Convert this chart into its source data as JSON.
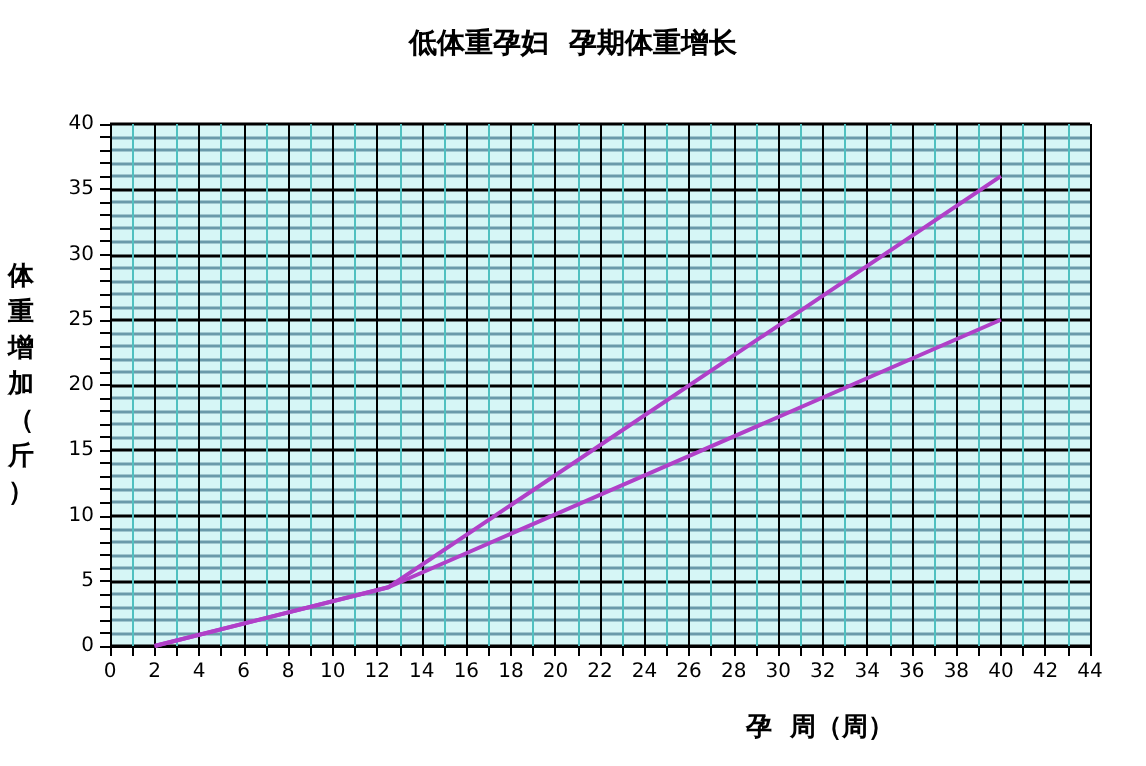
{
  "chart_data": {
    "type": "line",
    "title": "低体重孕妇  孕期体重增长",
    "xlabel": "孕  周（周）",
    "ylabel": "体重增加（斤）",
    "series": [
      {
        "x": [
          2,
          12.5,
          40
        ],
        "values": [
          0,
          4.5,
          36
        ],
        "color": "#b040c8"
      },
      {
        "x": [
          2,
          12.5,
          40
        ],
        "values": [
          0,
          4.5,
          25
        ],
        "color": "#b040c8"
      }
    ],
    "xlim": [
      0,
      44
    ],
    "xticks": [
      0,
      {
        "value": 1,
        "label": null
      },
      2,
      {
        "value": 3,
        "label": null
      },
      4,
      {
        "value": 5,
        "label": null
      },
      6,
      {
        "value": 7,
        "label": null
      },
      8,
      {
        "value": 9,
        "label": null
      },
      10,
      {
        "value": 11,
        "label": null
      },
      12,
      {
        "value": 13,
        "label": null
      },
      14,
      {
        "value": 15,
        "label": null
      },
      16,
      {
        "value": 17,
        "label": null
      },
      18,
      {
        "value": 19,
        "label": null
      },
      20,
      {
        "value": 21,
        "label": null
      },
      22,
      {
        "value": 23,
        "label": null
      },
      24,
      {
        "value": 25,
        "label": null
      },
      26,
      {
        "value": 27,
        "label": null
      },
      28,
      {
        "value": 29,
        "label": null
      },
      30,
      {
        "value": 31,
        "label": null
      },
      32,
      {
        "value": 33,
        "label": null
      },
      34,
      {
        "value": 35,
        "label": null
      },
      36,
      {
        "value": 37,
        "label": null
      },
      38,
      {
        "value": 39,
        "label": null
      },
      40,
      {
        "value": 41,
        "label": null
      },
      42,
      {
        "value": 43,
        "label": null
      },
      44
    ],
    "ylim": [
      0,
      40
    ],
    "yticks": [
      0,
      {
        "value": 1,
        "label": null
      },
      {
        "value": 2,
        "label": null
      },
      {
        "value": 3,
        "label": null
      },
      {
        "value": 4,
        "label": null
      },
      5,
      {
        "value": 6,
        "label": null
      },
      {
        "value": 7,
        "label": null
      },
      {
        "value": 8,
        "label": null
      },
      {
        "value": 9,
        "label": null
      },
      10,
      {
        "value": 11,
        "label": null
      },
      {
        "value": 12,
        "label": null
      },
      {
        "value": 13,
        "label": null
      },
      {
        "value": 14,
        "label": null
      },
      15,
      {
        "value": 16,
        "label": null
      },
      {
        "value": 17,
        "label": null
      },
      {
        "value": 18,
        "label": null
      },
      {
        "value": 19,
        "label": null
      },
      20,
      {
        "value": 21,
        "label": null
      },
      {
        "value": 22,
        "label": null
      },
      {
        "value": 23,
        "label": null
      },
      {
        "value": 24,
        "label": null
      },
      25,
      {
        "value": 26,
        "label": null
      },
      {
        "value": 27,
        "label": null
      },
      {
        "value": 28,
        "label": null
      },
      {
        "value": 29,
        "label": null
      },
      30,
      {
        "value": 31,
        "label": null
      },
      {
        "value": 32,
        "label": null
      },
      {
        "value": 33,
        "label": null
      },
      {
        "value": 34,
        "label": null
      },
      35,
      {
        "value": 36,
        "label": null
      },
      {
        "value": 37,
        "label": null
      },
      {
        "value": 38,
        "label": null
      },
      {
        "value": 39,
        "label": null
      },
      40
    ],
    "grid": true,
    "marker": "none",
    "line_style": "solid"
  }
}
